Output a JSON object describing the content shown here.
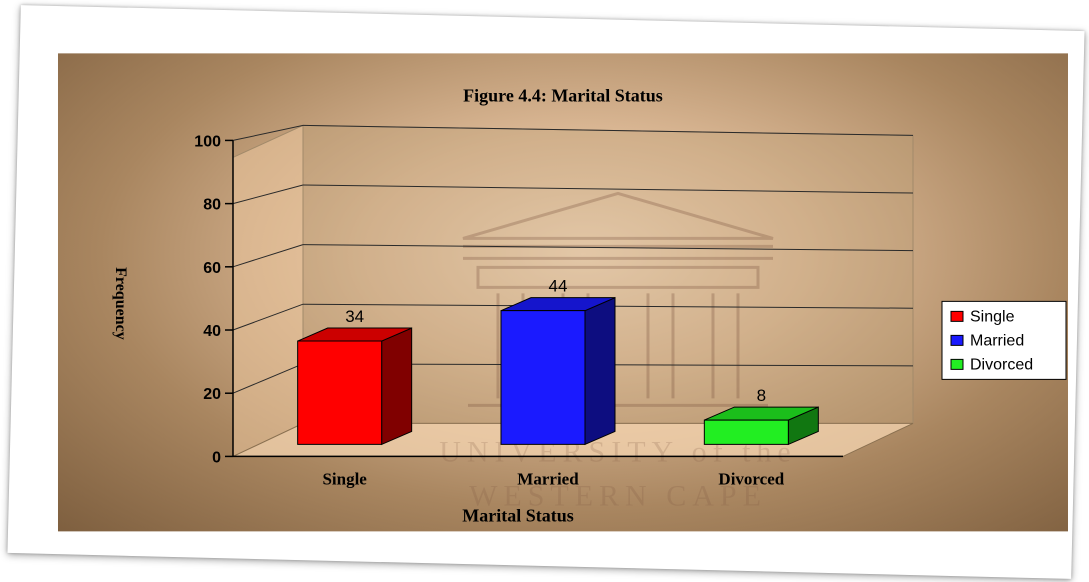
{
  "chart_data": {
    "type": "bar",
    "title": "Figure 4.4: Marital Status",
    "xlabel": "Marital Status",
    "ylabel": "Frequency",
    "ylim": [
      0,
      100
    ],
    "yticks": [
      0,
      20,
      40,
      60,
      80,
      100
    ],
    "categories": [
      "Single",
      "Married",
      "Divorced"
    ],
    "values": [
      34,
      44,
      8
    ],
    "colors": [
      "#ff0000",
      "#1a1aff",
      "#22ee22"
    ],
    "legend": {
      "placement": "right",
      "entries": [
        "Single",
        "Married",
        "Divorced"
      ]
    },
    "grid": true,
    "style": "3d-bar"
  },
  "watermark": {
    "lines": [
      "UNIVERSITY of the",
      "WESTERN CAPE"
    ],
    "icon": "university-building-icon"
  }
}
